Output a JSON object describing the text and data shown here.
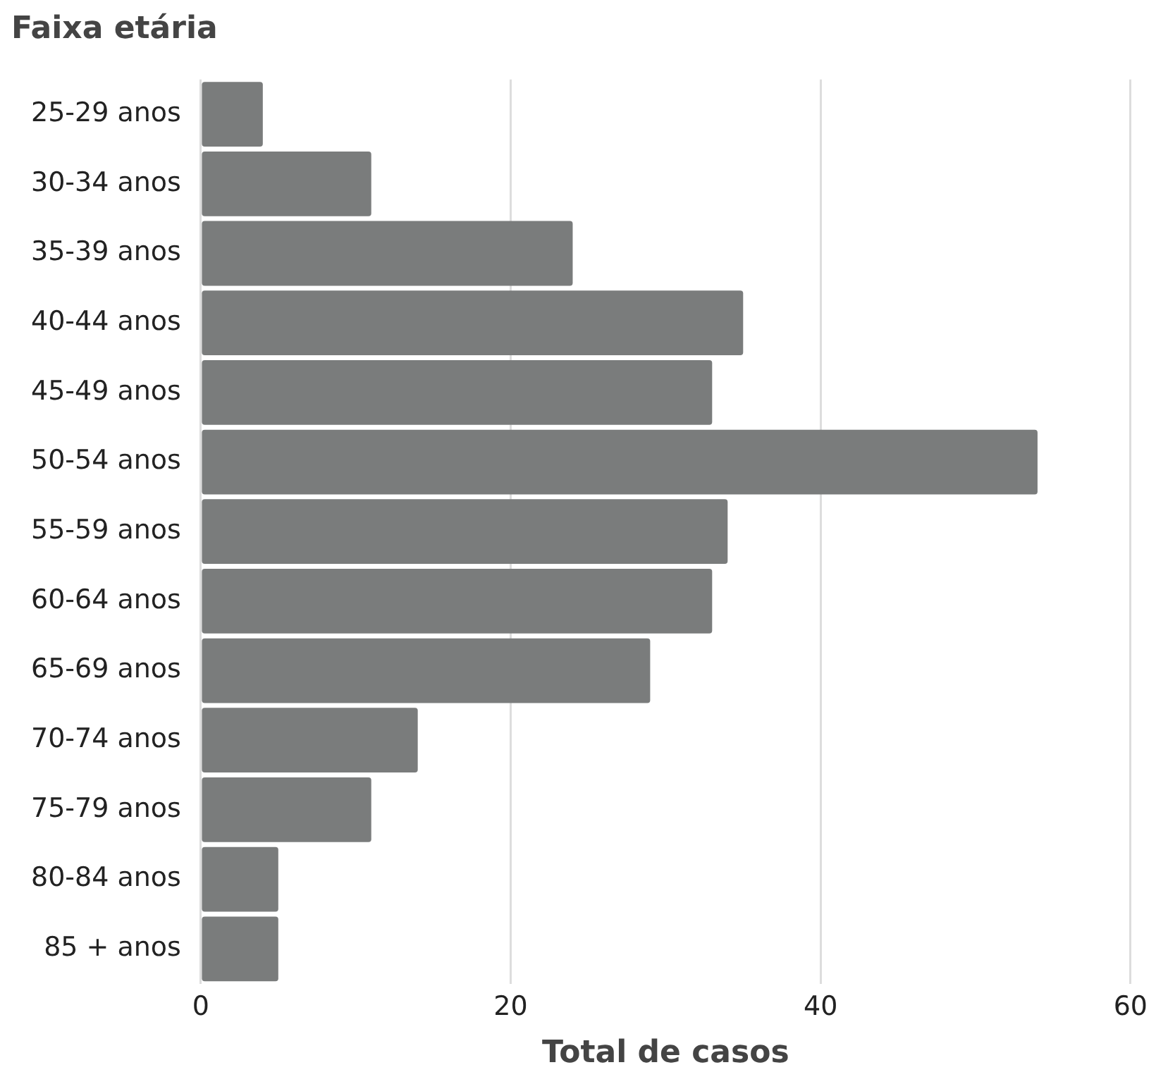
{
  "chart_data": {
    "type": "bar",
    "orientation": "horizontal",
    "title": "Faixa etária",
    "xlabel": "Total de casos",
    "categories": [
      "25-29 anos",
      "30-34 anos",
      "35-39 anos",
      "40-44 anos",
      "45-49 anos",
      "50-54 anos",
      "55-59 anos",
      "60-64 anos",
      "65-69 anos",
      "70-74 anos",
      "75-79 anos",
      "80-84 anos",
      "85 + anos"
    ],
    "values": [
      4,
      11,
      24,
      35,
      33,
      54,
      34,
      33,
      29,
      14,
      11,
      5,
      5
    ],
    "color": "#7a7c7c",
    "xlim": [
      0,
      60
    ],
    "xticks": [
      0,
      20,
      40,
      60
    ],
    "grid": "x",
    "legend": false
  }
}
